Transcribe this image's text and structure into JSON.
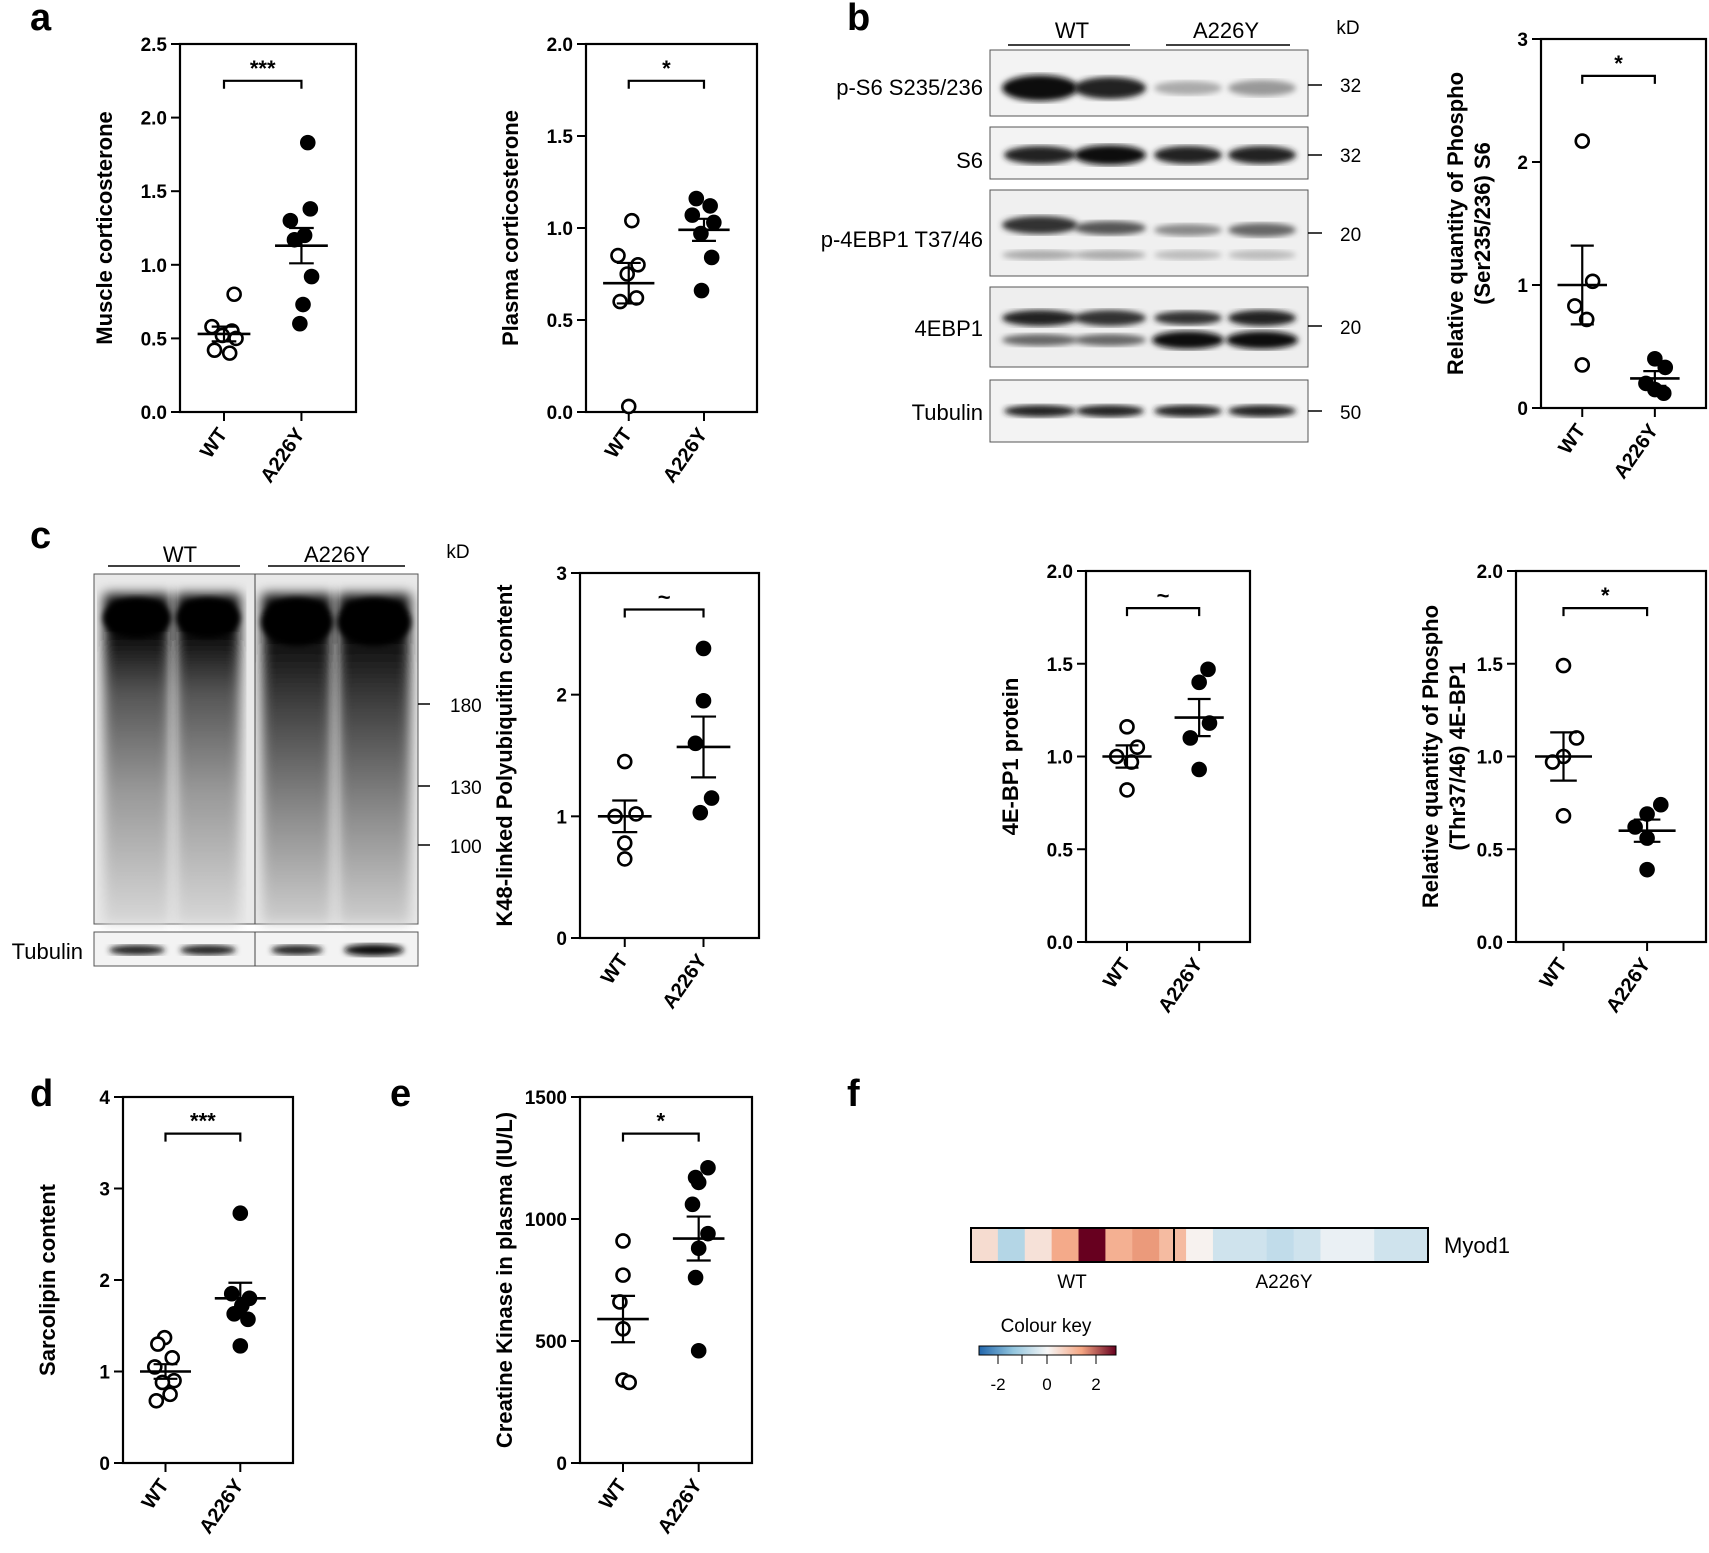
{
  "panel_labels": {
    "a": "a",
    "b": "b",
    "c": "c",
    "d": "d",
    "e": "e",
    "f": "f"
  },
  "chart_data": [
    {
      "id": "a1",
      "type": "scatter",
      "ylabel": "Muscle corticosterone",
      "categories": [
        "WT",
        "A226Y"
      ],
      "ylim": [
        0,
        2.5
      ],
      "yticks": [
        "0.0",
        "0.5",
        "1.0",
        "1.5",
        "2.0",
        "2.5"
      ],
      "significance": "***",
      "groups": [
        {
          "name": "WT",
          "filled": false,
          "values": [
            0.8,
            0.58,
            0.55,
            0.52,
            0.5,
            0.42,
            0.4
          ],
          "mean": 0.53,
          "sem": 0.05
        },
        {
          "name": "A226Y",
          "filled": true,
          "values": [
            1.83,
            1.38,
            1.3,
            1.2,
            1.17,
            0.92,
            0.73,
            0.6
          ],
          "mean": 1.13,
          "sem": 0.12
        }
      ]
    },
    {
      "id": "a2",
      "type": "scatter",
      "ylabel": "Plasma corticosterone",
      "categories": [
        "WT",
        "A226Y"
      ],
      "ylim": [
        0,
        2.0
      ],
      "yticks": [
        "0.0",
        "0.5",
        "1.0",
        "1.5",
        "2.0"
      ],
      "significance": "*",
      "groups": [
        {
          "name": "WT",
          "filled": false,
          "values": [
            1.04,
            0.85,
            0.8,
            0.75,
            0.62,
            0.6,
            0.03
          ],
          "mean": 0.7,
          "sem": 0.11
        },
        {
          "name": "A226Y",
          "filled": true,
          "values": [
            1.16,
            1.12,
            1.07,
            1.03,
            0.97,
            0.84,
            0.66
          ],
          "mean": 0.99,
          "sem": 0.06
        }
      ]
    },
    {
      "id": "b1",
      "type": "scatter",
      "ylabel": "Relative quantity of Phospho",
      "ylabel2": "(Ser235/236) S6",
      "categories": [
        "WT",
        "A226Y"
      ],
      "ylim": [
        0,
        3
      ],
      "yticks": [
        "0",
        "1",
        "2",
        "3"
      ],
      "significance": "*",
      "groups": [
        {
          "name": "WT",
          "filled": false,
          "values": [
            2.17,
            1.03,
            0.83,
            0.72,
            0.35
          ],
          "mean": 1.0,
          "sem": 0.32
        },
        {
          "name": "A226Y",
          "filled": true,
          "values": [
            0.4,
            0.33,
            0.2,
            0.15,
            0.12
          ],
          "mean": 0.24,
          "sem": 0.06
        }
      ]
    },
    {
      "id": "c1",
      "type": "scatter",
      "ylabel": "K48-linked Polyubiquitin content",
      "categories": [
        "WT",
        "A226Y"
      ],
      "ylim": [
        0,
        3
      ],
      "yticks": [
        "0",
        "1",
        "2",
        "3"
      ],
      "significance": "~",
      "groups": [
        {
          "name": "WT",
          "filled": false,
          "values": [
            1.45,
            1.02,
            1.0,
            0.78,
            0.65
          ],
          "mean": 1.0,
          "sem": 0.13
        },
        {
          "name": "A226Y",
          "filled": true,
          "values": [
            2.38,
            1.95,
            1.6,
            1.15,
            1.03
          ],
          "mean": 1.57,
          "sem": 0.25
        }
      ]
    },
    {
      "id": "c2",
      "type": "scatter",
      "ylabel": "4E-BP1 protein",
      "categories": [
        "WT",
        "A226Y"
      ],
      "ylim": [
        0,
        2.0
      ],
      "yticks": [
        "0.0",
        "0.5",
        "1.0",
        "1.5",
        "2.0"
      ],
      "significance": "~",
      "groups": [
        {
          "name": "WT",
          "filled": false,
          "values": [
            1.16,
            1.05,
            1.0,
            0.97,
            0.82
          ],
          "mean": 1.0,
          "sem": 0.06
        },
        {
          "name": "A226Y",
          "filled": true,
          "values": [
            1.47,
            1.4,
            1.18,
            1.1,
            0.93
          ],
          "mean": 1.21,
          "sem": 0.1
        }
      ]
    },
    {
      "id": "c3",
      "type": "scatter",
      "ylabel": "Relative quantity of Phospho",
      "ylabel2": "(Thr37/46) 4E-BP1",
      "categories": [
        "WT",
        "A226Y"
      ],
      "ylim": [
        0,
        2.0
      ],
      "yticks": [
        "0.0",
        "0.5",
        "1.0",
        "1.5",
        "2.0"
      ],
      "significance": "*",
      "groups": [
        {
          "name": "WT",
          "filled": false,
          "values": [
            1.49,
            1.1,
            1.0,
            0.97,
            0.68
          ],
          "mean": 1.0,
          "sem": 0.13
        },
        {
          "name": "A226Y",
          "filled": true,
          "values": [
            0.74,
            0.69,
            0.62,
            0.56,
            0.39
          ],
          "mean": 0.6,
          "sem": 0.06
        }
      ]
    },
    {
      "id": "d1",
      "type": "scatter",
      "ylabel": "Sarcolipin content",
      "categories": [
        "WT",
        "A226Y"
      ],
      "ylim": [
        0,
        4
      ],
      "yticks": [
        "0",
        "1",
        "2",
        "3",
        "4"
      ],
      "significance": "***",
      "groups": [
        {
          "name": "WT",
          "filled": false,
          "values": [
            1.37,
            1.3,
            1.15,
            1.05,
            0.9,
            0.88,
            0.75,
            0.68
          ],
          "mean": 1.0,
          "sem": 0.08
        },
        {
          "name": "A226Y",
          "filled": true,
          "values": [
            2.73,
            1.85,
            1.8,
            1.72,
            1.63,
            1.57,
            1.28
          ],
          "mean": 1.8,
          "sem": 0.17
        }
      ]
    },
    {
      "id": "e1",
      "type": "scatter",
      "ylabel": "Creatine Kinase in plasma (IU/L)",
      "categories": [
        "WT",
        "A226Y"
      ],
      "ylim": [
        0,
        1500
      ],
      "yticks": [
        "0",
        "500",
        "1000",
        "1500"
      ],
      "significance": "*",
      "groups": [
        {
          "name": "WT",
          "filled": false,
          "values": [
            910,
            770,
            660,
            550,
            340,
            330
          ],
          "mean": 590,
          "sem": 95
        },
        {
          "name": "A226Y",
          "filled": true,
          "values": [
            1210,
            1170,
            1150,
            1060,
            940,
            880,
            760,
            460
          ],
          "mean": 920,
          "sem": 90
        }
      ]
    },
    {
      "id": "f1",
      "type": "heatmap",
      "row_label": "Myod1",
      "group_labels": [
        "WT",
        "A226Y"
      ],
      "legend_title": "Colour key",
      "legend_ticks": [
        "-2",
        "0",
        "2"
      ],
      "values": [
        0.5,
        -1.0,
        0.4,
        1.4,
        3.0,
        1.3,
        1.6,
        1.1,
        0.1,
        -0.6,
        -0.6,
        -0.8,
        -0.6,
        -0.2,
        -0.2,
        -0.6,
        -0.6
      ]
    }
  ],
  "blot_b": {
    "groups": [
      "WT",
      "A226Y"
    ],
    "kd_header": "kD",
    "rows": [
      {
        "label": "p-S6 S235/236",
        "kd": "32"
      },
      {
        "label": "S6",
        "kd": "32"
      },
      {
        "label": "p-4EBP1 T37/46",
        "kd": "20"
      },
      {
        "label": "4EBP1",
        "kd": "20"
      },
      {
        "label": "Tubulin",
        "kd": "50"
      }
    ]
  },
  "blot_c": {
    "groups": [
      "WT",
      "A226Y"
    ],
    "kd_header": "kD",
    "markers": [
      "180",
      "130",
      "100"
    ],
    "loading_label": "Tubulin"
  },
  "colors": {
    "ink": "#000000",
    "heat_low": "#2166ac",
    "heat_mid": "#f7f7f7",
    "heat_high": "#67001f"
  }
}
